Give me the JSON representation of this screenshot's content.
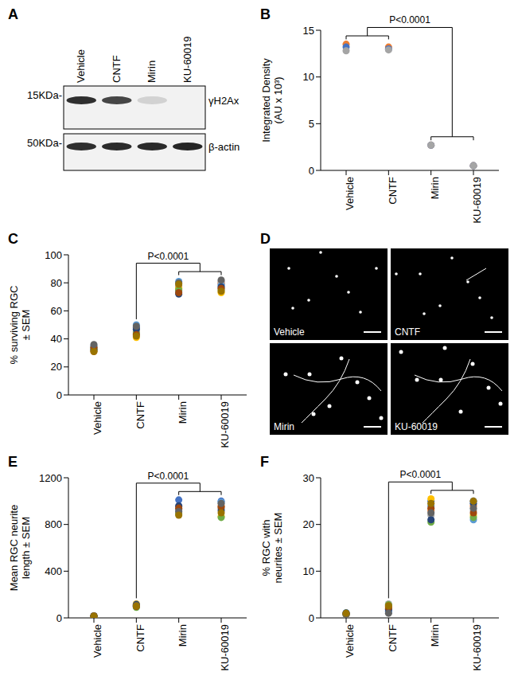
{
  "panel_A": {
    "panel_label": "A",
    "lanes": [
      "Vehicle",
      "CNTF",
      "Mirin",
      "KU-60019"
    ],
    "blots": [
      {
        "size_label": "15KDa-",
        "protein": "γH2Ax"
      },
      {
        "size_label": "50KDa-",
        "protein": "β-actin"
      }
    ]
  },
  "chart_data": [
    {
      "panel_label": "B",
      "type": "scatter",
      "categories": [
        "Vehicle",
        "CNTF",
        "Mirin",
        "KU-60019"
      ],
      "y_label": [
        "Integrated Density",
        "(AU x 10³)"
      ],
      "ylim": [
        0,
        15
      ],
      "yticks": [
        0,
        5,
        10,
        15
      ],
      "series": [
        {
          "color": "#ed7d31",
          "values": [
            13.5,
            13.2,
            2.7,
            0.5
          ]
        },
        {
          "color": "#4472c4",
          "values": [
            13.2,
            13.0,
            2.7,
            0.5
          ]
        },
        {
          "color": "#a5a5a5",
          "values": [
            12.8,
            12.9,
            2.7,
            0.5
          ]
        }
      ],
      "annotations": [
        {
          "text": "P<0.0001",
          "left": [
            "Vehicle",
            "CNTF"
          ],
          "right": [
            "Mirin",
            "KU-60019"
          ]
        }
      ]
    },
    {
      "panel_label": "C",
      "type": "scatter",
      "categories": [
        "Vehicle",
        "CNTF",
        "Mirin",
        "KU-60019"
      ],
      "y_label": [
        "% surviving RGC",
        "± SEM"
      ],
      "ylim": [
        0,
        100
      ],
      "yticks": [
        0,
        20,
        40,
        60,
        80,
        100
      ],
      "series": [
        {
          "color": "#4472c4",
          "values": [
            33,
            48,
            74,
            79
          ]
        },
        {
          "color": "#ed7d31",
          "values": [
            31,
            45,
            77,
            80
          ]
        },
        {
          "color": "#a5a5a5",
          "values": [
            34,
            46,
            78,
            81
          ]
        },
        {
          "color": "#ffc000",
          "values": [
            32,
            41,
            76,
            73
          ]
        },
        {
          "color": "#5b9bd5",
          "values": [
            35,
            50,
            81,
            78
          ]
        },
        {
          "color": "#70ad47",
          "values": [
            33,
            44,
            75,
            75
          ]
        },
        {
          "color": "#264478",
          "values": [
            32,
            47,
            72,
            77
          ]
        },
        {
          "color": "#9e480e",
          "values": [
            34,
            43,
            73,
            76
          ]
        },
        {
          "color": "#636363",
          "values": [
            36,
            49,
            80,
            82
          ]
        },
        {
          "color": "#997300",
          "values": [
            31,
            42,
            79,
            74
          ]
        }
      ],
      "annotations": [
        {
          "text": "P<0.0001",
          "left": [
            "CNTF"
          ],
          "right": [
            "Mirin",
            "KU-60019"
          ]
        }
      ]
    },
    {
      "panel_label": "E",
      "type": "scatter",
      "categories": [
        "Vehicle",
        "CNTF",
        "Mirin",
        "KU-60019"
      ],
      "y_label": [
        "Mean RGC neurite",
        "length ± SEM"
      ],
      "ylim": [
        0,
        1200
      ],
      "yticks": [
        0,
        400,
        800,
        1200
      ],
      "series": [
        {
          "color": "#4472c4",
          "values": [
            15,
            100,
            1010,
            1000
          ]
        },
        {
          "color": "#ed7d31",
          "values": [
            12,
            110,
            930,
            960
          ]
        },
        {
          "color": "#a5a5a5",
          "values": [
            18,
            95,
            950,
            940
          ]
        },
        {
          "color": "#ffc000",
          "values": [
            14,
            120,
            900,
            870
          ]
        },
        {
          "color": "#5b9bd5",
          "values": [
            16,
            105,
            920,
            990
          ]
        },
        {
          "color": "#70ad47",
          "values": [
            13,
            90,
            890,
            860
          ]
        },
        {
          "color": "#264478",
          "values": [
            17,
            115,
            960,
            920
          ]
        },
        {
          "color": "#9e480e",
          "values": [
            15,
            98,
            940,
            950
          ]
        },
        {
          "color": "#636363",
          "values": [
            14,
            108,
            910,
            980
          ]
        },
        {
          "color": "#997300",
          "values": [
            16,
            102,
            880,
            900
          ]
        }
      ],
      "annotations": [
        {
          "text": "P<0.0001",
          "left": [
            "CNTF"
          ],
          "right": [
            "Mirin",
            "KU-60019"
          ]
        }
      ]
    },
    {
      "panel_label": "F",
      "type": "scatter",
      "categories": [
        "Vehicle",
        "CNTF",
        "Mirin",
        "KU-60019"
      ],
      "y_label": [
        "% RGC with",
        "neurites ± SEM"
      ],
      "ylim": [
        0,
        30
      ],
      "yticks": [
        0,
        10,
        20,
        30
      ],
      "series": [
        {
          "color": "#4472c4",
          "values": [
            0.8,
            1.5,
            25,
            25
          ]
        },
        {
          "color": "#ed7d31",
          "values": [
            0.9,
            2.5,
            23,
            24
          ]
        },
        {
          "color": "#a5a5a5",
          "values": [
            1,
            3,
            22,
            23
          ]
        },
        {
          "color": "#ffc000",
          "values": [
            0.7,
            2,
            25.5,
            22
          ]
        },
        {
          "color": "#5b9bd5",
          "values": [
            1.1,
            1.2,
            24,
            21
          ]
        },
        {
          "color": "#70ad47",
          "values": [
            0.8,
            2.8,
            20.5,
            21.5
          ]
        },
        {
          "color": "#264478",
          "values": [
            1,
            1.8,
            21,
            24.5
          ]
        },
        {
          "color": "#9e480e",
          "values": [
            0.9,
            2.2,
            23.5,
            22.5
          ]
        },
        {
          "color": "#636363",
          "values": [
            0.7,
            1,
            22.5,
            23.5
          ]
        },
        {
          "color": "#997300",
          "values": [
            1,
            2.6,
            24.5,
            25
          ]
        }
      ],
      "annotations": [
        {
          "text": "P<0.0001",
          "left": [
            "CNTF"
          ],
          "right": [
            "Mirin",
            "KU-60019"
          ]
        }
      ]
    }
  ],
  "panel_D": {
    "panel_label": "D",
    "images": [
      "Vehicle",
      "CNTF",
      "Mirin",
      "KU-60019"
    ]
  }
}
